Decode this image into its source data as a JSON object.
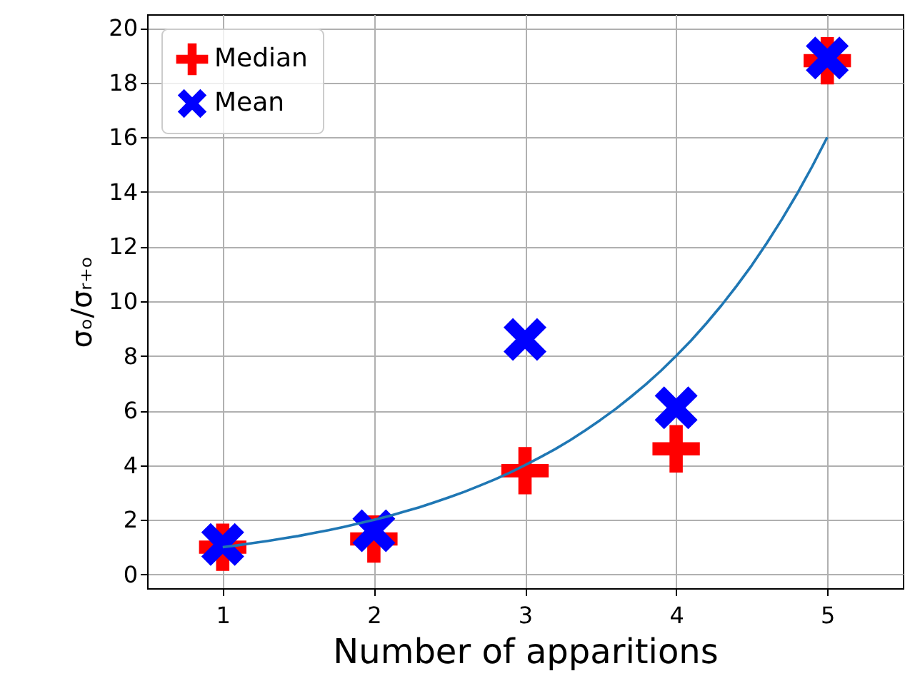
{
  "chart_data": {
    "type": "scatter",
    "xlabel": "Number of apparitions",
    "ylabel": "σₒ/σᵣ₊ₒ",
    "x": [
      1,
      2,
      3,
      4,
      5
    ],
    "xlim": [
      0.5,
      5.5
    ],
    "xticks": [
      1,
      2,
      3,
      4,
      5
    ],
    "ylim": [
      -0.5,
      20.5
    ],
    "yticks": [
      0,
      2,
      4,
      6,
      8,
      10,
      12,
      14,
      16,
      18,
      20
    ],
    "grid": true,
    "legend": "top left",
    "series": [
      {
        "name": "Median",
        "color": "#ff0000",
        "marker": "cross",
        "values": [
          1.0,
          1.3,
          3.8,
          4.6,
          18.8
        ]
      },
      {
        "name": "Mean",
        "color": "#0000ff",
        "marker": "x",
        "values": [
          1.1,
          1.6,
          8.6,
          6.1,
          18.9
        ]
      },
      {
        "type": "line",
        "color": "#1f77b4",
        "marker": "none",
        "x": [
          1,
          1.1,
          1.2,
          1.3,
          1.4,
          1.5,
          1.6,
          1.7,
          1.8,
          1.9,
          2,
          2.1,
          2.2,
          2.3,
          2.4,
          2.5,
          2.6,
          2.7,
          2.8,
          2.9,
          3,
          3.1,
          3.2,
          3.3,
          3.4,
          3.5,
          3.6,
          3.7,
          3.8,
          3.9,
          4,
          4.1,
          4.2,
          4.3,
          4.4,
          4.5,
          4.6,
          4.7,
          4.8,
          4.9,
          5
        ],
        "values": [
          1,
          1.07,
          1.15,
          1.23,
          1.32,
          1.41,
          1.52,
          1.62,
          1.74,
          1.87,
          2,
          2.14,
          2.3,
          2.46,
          2.64,
          2.83,
          3.03,
          3.25,
          3.48,
          3.73,
          4,
          4.29,
          4.59,
          4.92,
          5.28,
          5.66,
          6.06,
          6.5,
          6.96,
          7.46,
          8,
          8.57,
          9.19,
          9.85,
          10.56,
          11.31,
          12.13,
          13,
          13.93,
          14.93,
          16
        ]
      }
    ]
  }
}
